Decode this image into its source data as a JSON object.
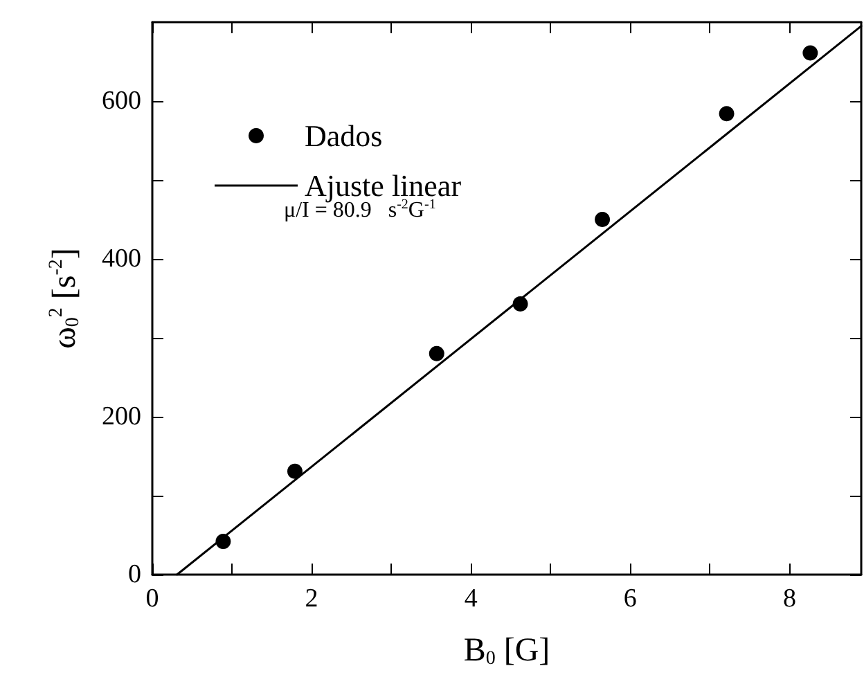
{
  "chart_data": {
    "type": "scatter",
    "xlabel": "B$_{0}$ [G]",
    "ylabel": "ω$_{0}$$^{2}$ [s$^{-2}$]",
    "annotations": [
      "μ/I = 80.9   s$^{-2}$G$^{-1}$"
    ],
    "series": [
      {
        "name": "Dados",
        "marker": "circle",
        "color": "#000000",
        "x": [
          0.89,
          1.79,
          3.57,
          4.62,
          5.65,
          7.21,
          8.26
        ],
        "values": [
          42,
          131,
          280,
          343,
          450,
          584,
          661
        ]
      },
      {
        "name": "Ajuste linear",
        "type": "line",
        "marker": "none",
        "line_style": "solid",
        "color": "#000000",
        "x": [
          0.31,
          8.9
        ],
        "values": [
          0,
          695
        ]
      }
    ],
    "xlim": [
      0,
      8.9
    ],
    "xticks": [
      0,
      {
        "value": 1,
        "label": null
      },
      2,
      {
        "value": 3,
        "label": null
      },
      4,
      {
        "value": 5,
        "label": null
      },
      6,
      {
        "value": 7,
        "label": null
      },
      8
    ],
    "ylim": [
      0,
      700
    ],
    "yticks": [
      0,
      {
        "value": 100,
        "label": null
      },
      200,
      {
        "value": 300,
        "label": null
      },
      400,
      {
        "value": 500,
        "label": null
      },
      600
    ],
    "grid": false,
    "legend": "top left"
  }
}
